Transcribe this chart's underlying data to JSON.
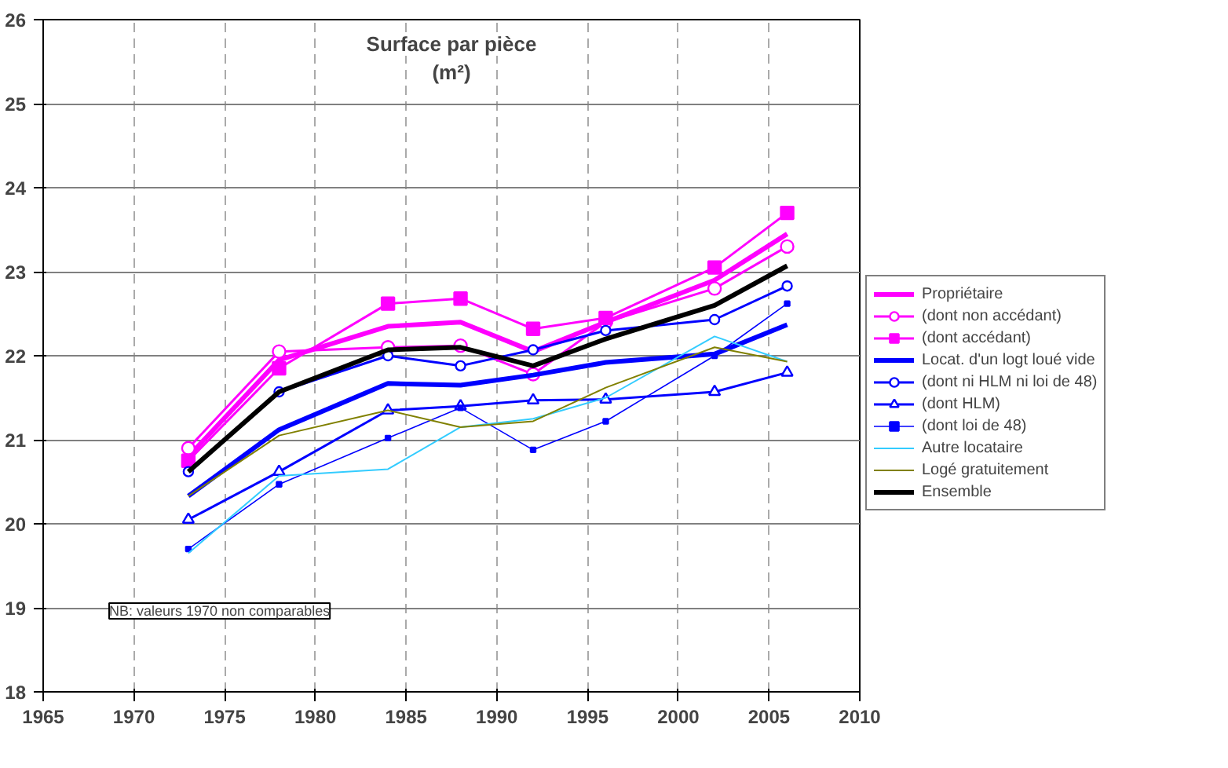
{
  "chart_data": {
    "type": "line",
    "title": "Surface par pièce",
    "subtitle": "(m²)",
    "x": [
      1973,
      1978,
      1984,
      1988,
      1992,
      1996,
      2002,
      2006
    ],
    "xlim": [
      1965,
      2010
    ],
    "xticks": [
      1965,
      1970,
      1975,
      1980,
      1985,
      1990,
      1995,
      2000,
      2005,
      2010
    ],
    "ylim": [
      18,
      26
    ],
    "yticks": [
      18,
      19,
      20,
      21,
      22,
      23,
      24,
      25,
      26
    ],
    "grid": true,
    "legend": "right",
    "annotations": [
      "NB: valeurs 1970 non comparables"
    ],
    "series": [
      {
        "name": "Propriétaire",
        "color": "#ff00ff",
        "marker": "none",
        "values": [
          20.8,
          21.95,
          22.35,
          22.4,
          22.05,
          22.4,
          22.9,
          23.45
        ]
      },
      {
        "name": "(dont non accédant)",
        "color": "#ff00ff",
        "marker": "circle",
        "values": [
          20.9,
          22.05,
          22.1,
          22.12,
          21.78,
          22.4,
          22.8,
          23.3
        ]
      },
      {
        "name": "(dont accédant)",
        "color": "#ff00ff",
        "marker": "square",
        "values": [
          20.75,
          21.85,
          22.62,
          22.68,
          22.32,
          22.45,
          23.05,
          23.7
        ]
      },
      {
        "name": "Locat. d'un logt loué vide",
        "color": "#0000ff",
        "marker": "none",
        "values": [
          20.33,
          21.12,
          21.67,
          21.65,
          21.77,
          21.92,
          22.02,
          22.37
        ]
      },
      {
        "name": "(dont ni HLM ni loi de 48)",
        "color": "#0000ff",
        "marker": "circle",
        "values": [
          20.62,
          21.57,
          22.0,
          21.88,
          22.07,
          22.3,
          22.43,
          22.83
        ]
      },
      {
        "name": "(dont HLM)",
        "color": "#0000ff",
        "marker": "triangle",
        "values": [
          20.05,
          20.62,
          21.35,
          21.4,
          21.47,
          21.48,
          21.57,
          21.8
        ]
      },
      {
        "name": "(dont loi de 48)",
        "color": "#0000ff",
        "marker": "square",
        "values": [
          19.7,
          20.47,
          21.02,
          21.38,
          20.88,
          21.22,
          22.0,
          22.62
        ]
      },
      {
        "name": "Autre locataire",
        "color": "#33ccff",
        "marker": "none",
        "values": [
          19.65,
          20.57,
          20.65,
          21.15,
          21.25,
          21.5,
          22.23,
          21.93
        ]
      },
      {
        "name": "Logé gratuitement",
        "color": "#808000",
        "marker": "none",
        "values": [
          20.33,
          21.05,
          21.35,
          21.15,
          21.22,
          21.62,
          22.1,
          21.93
        ]
      },
      {
        "name": "Ensemble",
        "color": "#000000",
        "marker": "none",
        "values": [
          20.62,
          21.57,
          22.07,
          22.1,
          21.88,
          22.2,
          22.6,
          23.07
        ]
      }
    ]
  }
}
